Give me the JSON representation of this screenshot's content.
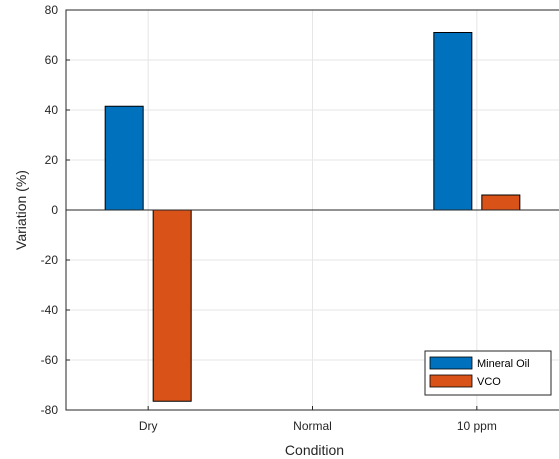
{
  "chart_data": {
    "type": "bar",
    "title": "",
    "xlabel": "Condition",
    "ylabel": "Variation (%)",
    "categories": [
      "Dry",
      "Normal",
      "10 ppm"
    ],
    "series": [
      {
        "name": "Mineral Oil",
        "values": [
          41.5,
          0,
          71
        ],
        "color": "#0072BD"
      },
      {
        "name": "VCO",
        "values": [
          -76.5,
          0,
          6
        ],
        "color": "#D95319"
      }
    ],
    "ylim": [
      -80,
      80
    ],
    "yticks": [
      -80,
      -60,
      -40,
      -20,
      0,
      20,
      40,
      60,
      80
    ],
    "grid": true,
    "legend_position": "bottom-right"
  }
}
